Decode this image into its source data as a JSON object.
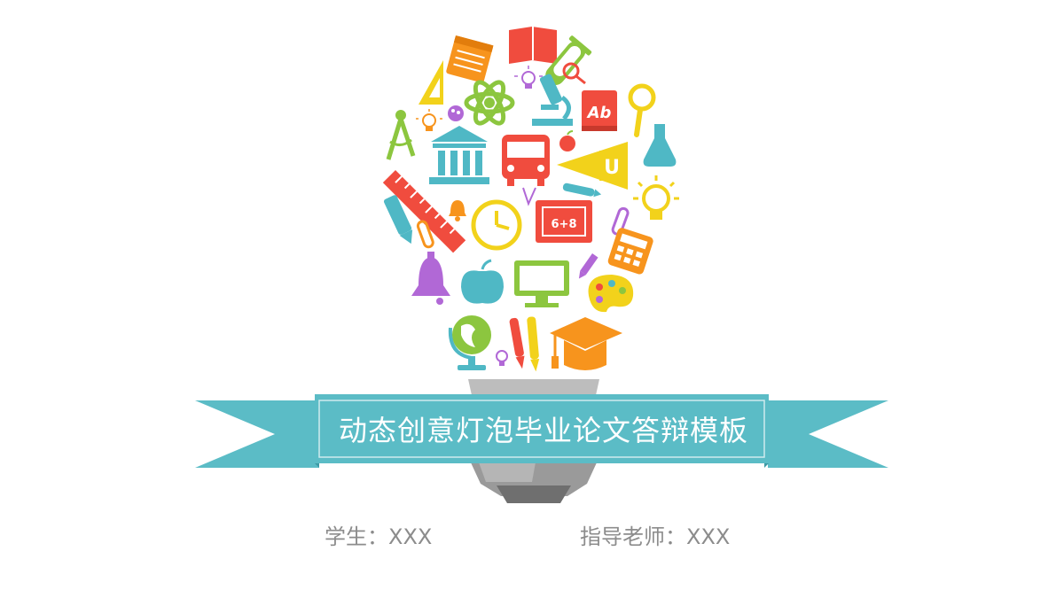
{
  "slide": {
    "title": "动态创意灯泡毕业论文答辩模板",
    "student_label": "学生：XXX",
    "advisor_label": "指导老师：XXX",
    "badge_text": "6+8",
    "book_text": "Ab",
    "pennant_text": "U"
  },
  "colors": {
    "ribbon": "#5bbcc6",
    "ribbon_dark": "#3e9aa5",
    "red": "#f04c3e",
    "orange": "#f7941d",
    "yellow": "#f2d21b",
    "green": "#8cc63f",
    "teal": "#4fb8c5",
    "purple": "#b168d6",
    "text_gray": "#8c8c8c"
  },
  "icons": [
    "notepad-icon",
    "book-icon",
    "test-tube-icon",
    "triangle-ruler-icon",
    "small-bulb-icon",
    "atom-icon",
    "microscope-icon",
    "abc-book-icon",
    "magnifier-icon",
    "compass-icon",
    "palette-icon",
    "building-icon",
    "bus-icon",
    "apple-icon",
    "pennant-icon",
    "flask-icon",
    "ruler-icon",
    "pencil-icon",
    "bell-icon",
    "clock-icon",
    "chalkboard-icon",
    "tube-icon",
    "lightbulb-icon",
    "calculator-icon",
    "monitor-icon",
    "paint-palette-icon",
    "globe-icon",
    "pens-icon",
    "graduation-cap-icon"
  ]
}
